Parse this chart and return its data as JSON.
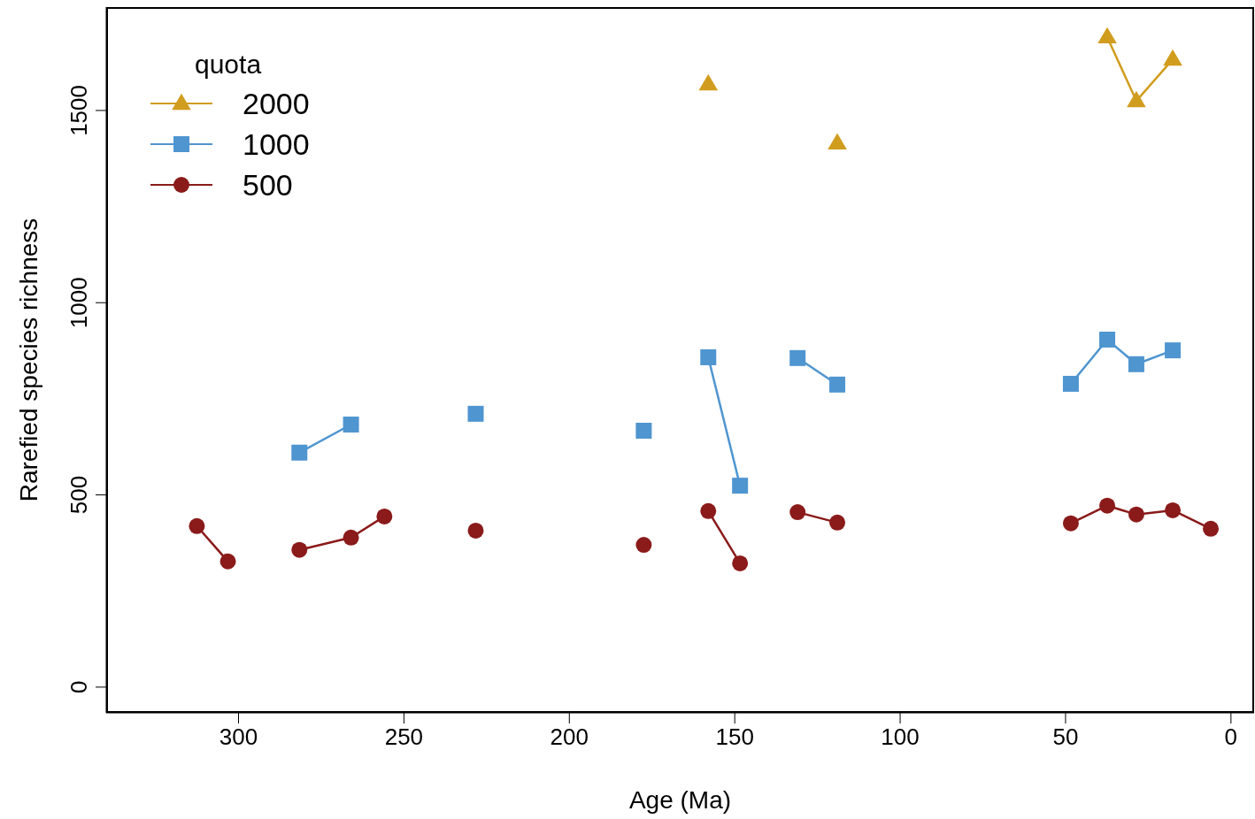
{
  "chart_data": {
    "type": "line",
    "xlabel": "Age (Ma)",
    "ylabel": "Rarefied species richness",
    "legend_title": "quota",
    "legend": "top left",
    "xlim": [
      340,
      -7
    ],
    "xticks": [
      300,
      250,
      200,
      150,
      100,
      50,
      0
    ],
    "ylim": [
      -67,
      1769
    ],
    "yticks": [
      0,
      500,
      1000,
      1500
    ],
    "series": [
      {
        "name": "2000",
        "color": "#d19d1e",
        "marker": "triangle",
        "x": [
          158,
          null,
          119,
          null,
          37.4,
          28.6,
          17.6
        ],
        "values": [
          1569,
          null,
          1415,
          null,
          1691,
          1525,
          1633
        ]
      },
      {
        "name": "1000",
        "color": "#4f95d0",
        "marker": "square",
        "x": [
          281.6,
          266,
          null,
          228.3,
          null,
          177.5,
          null,
          158,
          148.4,
          null,
          131,
          119,
          null,
          48.4,
          37.4,
          28.6,
          17.6
        ],
        "values": [
          610,
          683,
          null,
          711,
          null,
          667,
          null,
          858,
          524,
          null,
          856,
          787,
          null,
          789,
          904,
          840,
          876
        ]
      },
      {
        "name": "500",
        "color": "#8b1a1a",
        "marker": "circle",
        "x": [
          312.6,
          303.2,
          null,
          281.6,
          266,
          255.9,
          null,
          228.3,
          null,
          177.5,
          null,
          158,
          148.4,
          null,
          131,
          119,
          null,
          48.4,
          37.4,
          28.6,
          17.6,
          6.1
        ],
        "values": [
          419,
          327,
          null,
          357,
          389,
          444,
          null,
          407,
          null,
          370,
          null,
          458,
          322,
          null,
          455,
          428,
          null,
          426,
          472,
          449,
          460,
          412
        ]
      }
    ]
  }
}
